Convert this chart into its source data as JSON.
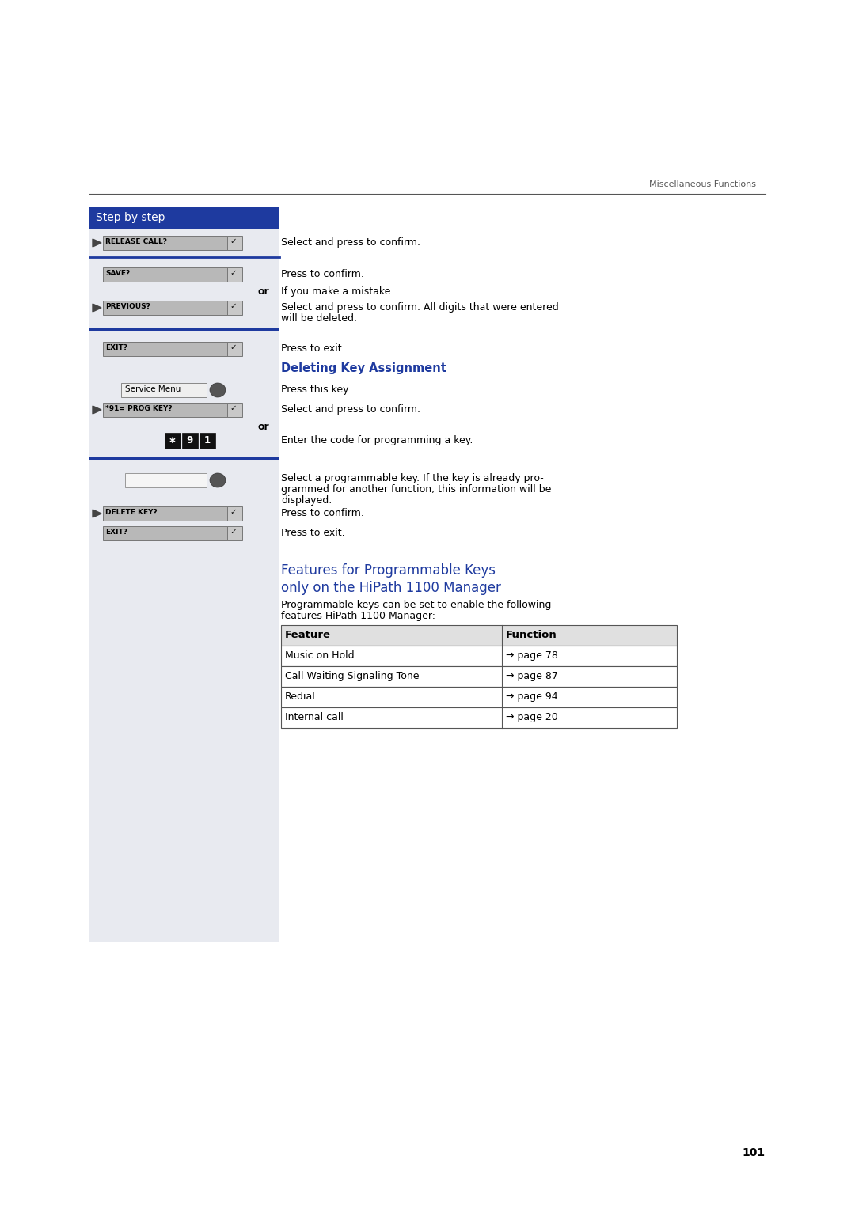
{
  "page_bg": "#ffffff",
  "left_panel_bg": "#e8eaf0",
  "header_line_color": "#555555",
  "header_text": "Miscellaneous Functions",
  "step_by_step_bg": "#1e3a9f",
  "step_by_step_text": "Step by step",
  "step_by_step_text_color": "#ffffff",
  "blue_separator_color": "#1e3a9f",
  "deleting_heading_color": "#1e3a9f",
  "deleting_heading": "Deleting Key Assignment",
  "features_heading_color": "#1e3a9f",
  "features_heading_line1": "Features for Programmable Keys",
  "features_heading_line2": "only on the HiPath 1100 Manager",
  "page_number": "101",
  "table_header": [
    "Feature",
    "Function"
  ],
  "table_rows": [
    [
      "Music on Hold",
      "→ page 78"
    ],
    [
      "Call Waiting Signaling Tone",
      "→ page 87"
    ],
    [
      "Redial",
      "→ page 94"
    ],
    [
      "Internal call",
      "→ page 20"
    ]
  ],
  "features_intro": "Programmable keys can be set to enable the following\nfeatures HiPath 1100 Manager:"
}
